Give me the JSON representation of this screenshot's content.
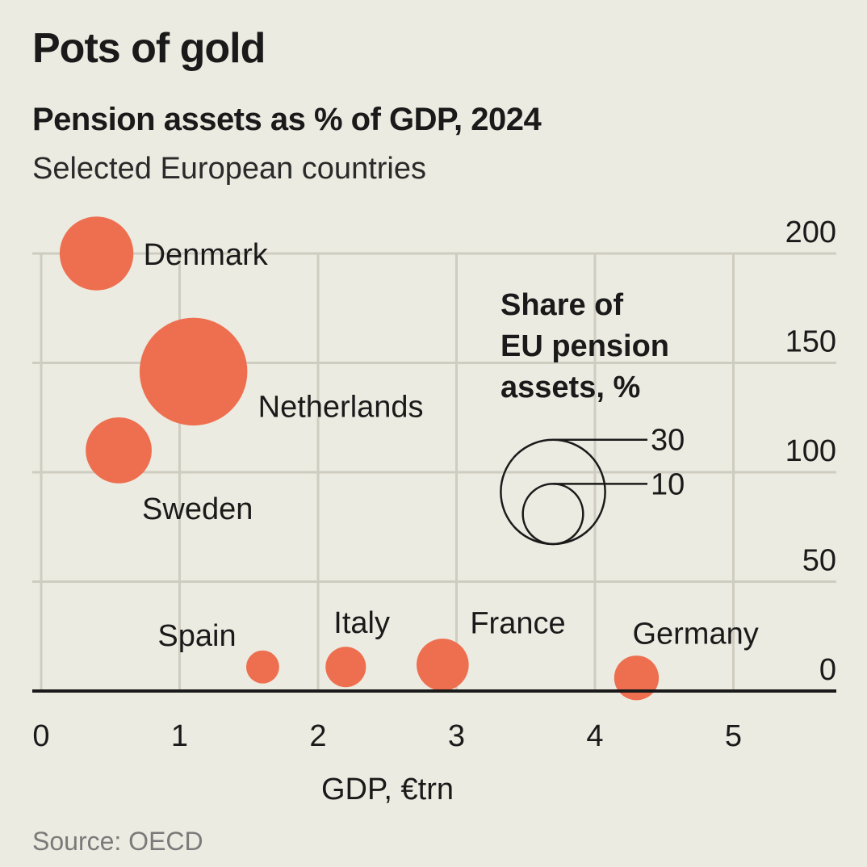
{
  "header": {
    "title": "Pots of gold",
    "subtitle": "Pension assets as % of GDP, 2024",
    "description": "Selected European countries"
  },
  "footer": {
    "source": "Source: OECD"
  },
  "chart_data": {
    "type": "scatter",
    "title": "Pots of gold",
    "subtitle": "Pension assets as % of GDP, 2024",
    "xlabel": "GDP, €trn",
    "ylabel": "",
    "xlim": [
      0,
      5.7
    ],
    "ylim": [
      0,
      200
    ],
    "xticks": [
      0,
      1,
      2,
      3,
      4,
      5
    ],
    "yticks": [
      0,
      50,
      100,
      150,
      200
    ],
    "x_tick_labels": [
      "0",
      "1",
      "2",
      "3",
      "4",
      "5"
    ],
    "y_tick_labels": [
      "0",
      "50",
      "100",
      "150",
      "200"
    ],
    "y_axis_side": "right",
    "grid": true,
    "bubble_color": "#ee6f50",
    "size_legend": {
      "title": "Share of EU pension assets, %",
      "title_lines": [
        "Share of",
        "EU pension",
        "assets, %"
      ],
      "values": [
        30,
        10
      ],
      "labels": [
        "30",
        "10"
      ]
    },
    "points": [
      {
        "name": "Denmark",
        "x": 0.4,
        "y": 200,
        "share": 15
      },
      {
        "name": "Netherlands",
        "x": 1.1,
        "y": 146,
        "share": 32
      },
      {
        "name": "Sweden",
        "x": 0.56,
        "y": 110,
        "share": 12
      },
      {
        "name": "Spain",
        "x": 1.6,
        "y": 11,
        "share": 3
      },
      {
        "name": "Italy",
        "x": 2.2,
        "y": 11,
        "share": 4.5
      },
      {
        "name": "France",
        "x": 2.9,
        "y": 12,
        "share": 7.5
      },
      {
        "name": "Germany",
        "x": 4.3,
        "y": 6,
        "share": 5.5
      }
    ]
  }
}
